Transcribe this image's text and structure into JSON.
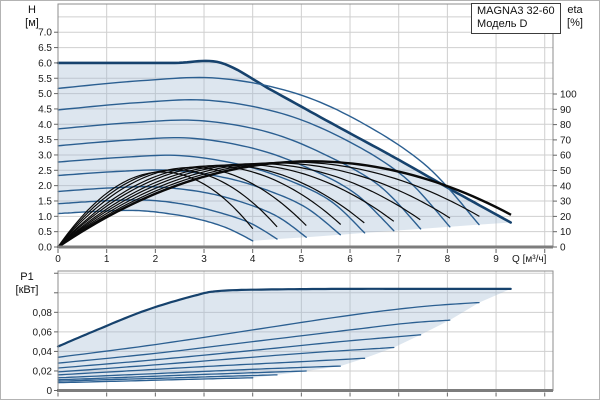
{
  "title_box": {
    "line1": "MAGNA3 32-60",
    "line2": "Модель D"
  },
  "top_chart": {
    "y_axis": {
      "name": "H",
      "unit": "[м]",
      "tick_labels": [
        "7.0",
        "6.5",
        "6.0",
        "5.5",
        "5.0",
        "4.5",
        "4.0",
        "3.5",
        "3.0",
        "2.5",
        "2.0",
        "1.5",
        "1.0",
        "0.5",
        "0.0"
      ]
    },
    "x_axis": {
      "unit_label": "Q [м³/ч]",
      "tick_labels": [
        "0",
        "1",
        "2",
        "3",
        "4",
        "5",
        "6",
        "7",
        "8",
        "9"
      ]
    },
    "eta_axis": {
      "name": "eta",
      "unit": "[%]",
      "tick_labels": [
        "100",
        "90",
        "80",
        "70",
        "60",
        "50",
        "40",
        "30",
        "20",
        "10",
        "0"
      ]
    }
  },
  "bottom_chart": {
    "y_axis": {
      "name": "P1",
      "unit": "[кВт]",
      "tick_labels": [
        "0,08",
        "0,06",
        "0,04",
        "0,02",
        "0"
      ]
    }
  },
  "colors": {
    "curve_blue": "#2b5f91",
    "curve_blue_bold": "#16426d",
    "efficiency_black": "#0a0a0a",
    "fill_blue": "#9db8d2",
    "fill_opacity": 0.35,
    "grid": "#cfcfcf",
    "frame": "#8c8c8c",
    "axis": "#7d7d7d",
    "text": "#1a1a1a",
    "box_border": "#3c3c3c",
    "page_border": "#b3b3b3"
  },
  "chart_data": [
    {
      "type": "line",
      "title": "MAGNA3 32-60 Модель D — Q/H speed curves with efficiency curves",
      "xlabel": "Q [м³/ч]",
      "ylabel": "H [м]",
      "y2label": "eta [%]",
      "xlim": [
        0,
        10.17
      ],
      "ylim": [
        0,
        7.92
      ],
      "y2lim": [
        0,
        100
      ],
      "grid": true,
      "legend_position": "none",
      "speed_curves": [
        [
          [
            0,
            6.0
          ],
          [
            1.2,
            6.0
          ],
          [
            2.4,
            6.0
          ],
          [
            3.35,
            6.0
          ],
          [
            4.4,
            5.1
          ],
          [
            5.6,
            4.05
          ],
          [
            6.9,
            2.93
          ],
          [
            8.1,
            1.85
          ],
          [
            9.3,
            0.8
          ]
        ],
        [
          [
            0,
            5.17
          ],
          [
            1.7,
            5.42
          ],
          [
            3.3,
            5.5
          ],
          [
            4.9,
            5.0
          ],
          [
            6.3,
            4.0
          ],
          [
            7.6,
            2.6
          ],
          [
            8.65,
            0.73
          ]
        ],
        [
          [
            0,
            4.47
          ],
          [
            1.6,
            4.7
          ],
          [
            3.1,
            4.78
          ],
          [
            4.6,
            4.35
          ],
          [
            5.9,
            3.5
          ],
          [
            7.1,
            2.3
          ],
          [
            8.05,
            0.66
          ]
        ],
        [
          [
            0,
            3.85
          ],
          [
            1.5,
            4.05
          ],
          [
            2.9,
            4.12
          ],
          [
            4.3,
            3.75
          ],
          [
            5.5,
            3.0
          ],
          [
            6.6,
            2.0
          ],
          [
            7.45,
            0.59
          ]
        ],
        [
          [
            0,
            3.3
          ],
          [
            1.4,
            3.48
          ],
          [
            2.7,
            3.55
          ],
          [
            4.0,
            3.22
          ],
          [
            5.1,
            2.6
          ],
          [
            6.1,
            1.75
          ],
          [
            6.9,
            0.53
          ]
        ],
        [
          [
            0,
            2.77
          ],
          [
            1.3,
            2.92
          ],
          [
            2.5,
            2.98
          ],
          [
            3.7,
            2.7
          ],
          [
            4.7,
            2.2
          ],
          [
            5.6,
            1.5
          ],
          [
            6.3,
            0.46
          ]
        ],
        [
          [
            0,
            2.33
          ],
          [
            1.2,
            2.46
          ],
          [
            2.3,
            2.5
          ],
          [
            3.4,
            2.27
          ],
          [
            4.3,
            1.85
          ],
          [
            5.1,
            1.28
          ],
          [
            5.8,
            0.4
          ]
        ],
        [
          [
            0,
            1.81
          ],
          [
            1.0,
            1.92
          ],
          [
            2.0,
            1.96
          ],
          [
            3.0,
            1.78
          ],
          [
            3.8,
            1.45
          ],
          [
            4.5,
            1.0
          ],
          [
            5.1,
            0.32
          ]
        ],
        [
          [
            0,
            1.41
          ],
          [
            0.9,
            1.5
          ],
          [
            1.8,
            1.53
          ],
          [
            2.6,
            1.39
          ],
          [
            3.3,
            1.13
          ],
          [
            3.95,
            0.78
          ],
          [
            4.5,
            0.26
          ]
        ],
        [
          [
            0,
            1.09
          ],
          [
            0.8,
            1.16
          ],
          [
            1.6,
            1.19
          ],
          [
            2.3,
            1.08
          ],
          [
            2.95,
            0.88
          ],
          [
            3.5,
            0.6
          ],
          [
            4.0,
            0.2
          ]
        ]
      ],
      "envelope_endpoints": [
        [
          9.3,
          0.8
        ],
        [
          8.65,
          0.73
        ],
        [
          8.05,
          0.66
        ],
        [
          7.45,
          0.59
        ],
        [
          6.9,
          0.53
        ],
        [
          6.3,
          0.46
        ],
        [
          5.8,
          0.4
        ],
        [
          5.1,
          0.32
        ],
        [
          4.5,
          0.26
        ],
        [
          4.0,
          0.2
        ]
      ],
      "efficiency_curves": [
        {
          "q_bep": 5.2,
          "eta_peak": 56.0,
          "q_end": 1.79
        },
        {
          "q_bep": 4.81,
          "eta_peak": 55.5,
          "q_end": 1.8
        },
        {
          "q_bep": 4.45,
          "eta_peak": 55.0,
          "q_end": 1.81
        },
        {
          "q_bep": 4.09,
          "eta_peak": 54.5,
          "q_end": 1.82
        },
        {
          "q_bep": 3.77,
          "eta_peak": 54.0,
          "q_end": 1.83
        },
        {
          "q_bep": 3.42,
          "eta_peak": 53.5,
          "q_end": 1.84
        },
        {
          "q_bep": 3.14,
          "eta_peak": 53.0,
          "q_end": 1.85
        },
        {
          "q_bep": 2.75,
          "eta_peak": 52.0,
          "q_end": 1.855
        },
        {
          "q_bep": 2.42,
          "eta_peak": 50.5,
          "q_end": 1.86
        },
        {
          "q_bep": 2.14,
          "eta_peak": 49.0,
          "q_end": 1.87
        }
      ]
    },
    {
      "type": "line",
      "title": "P1 power curves",
      "xlabel": "",
      "ylabel": "P1 [кВт]",
      "xlim": [
        0,
        10.17
      ],
      "ylim": [
        0,
        0.1223
      ],
      "grid": true,
      "legend_position": "none",
      "power_curves": [
        [
          [
            0,
            0.045
          ],
          [
            0.8,
            0.062
          ],
          [
            1.8,
            0.082
          ],
          [
            2.8,
            0.097
          ],
          [
            3.35,
            0.102
          ],
          [
            4.5,
            0.1035
          ],
          [
            6,
            0.104
          ],
          [
            7.5,
            0.104
          ],
          [
            9.3,
            0.104
          ]
        ],
        [
          [
            0,
            0.034
          ],
          [
            2,
            0.047
          ],
          [
            4,
            0.062
          ],
          [
            6,
            0.077
          ],
          [
            7.5,
            0.086
          ],
          [
            8.65,
            0.09
          ]
        ],
        [
          [
            0,
            0.028
          ],
          [
            2,
            0.038
          ],
          [
            4,
            0.05
          ],
          [
            6,
            0.062
          ],
          [
            7.2,
            0.069
          ],
          [
            8.05,
            0.072
          ]
        ],
        [
          [
            0,
            0.023
          ],
          [
            2,
            0.0315
          ],
          [
            4,
            0.041
          ],
          [
            5.8,
            0.05
          ],
          [
            7.45,
            0.057
          ]
        ],
        [
          [
            0,
            0.019
          ],
          [
            1.8,
            0.0255
          ],
          [
            3.6,
            0.0325
          ],
          [
            5.3,
            0.039
          ],
          [
            6.9,
            0.044
          ]
        ],
        [
          [
            0,
            0.016
          ],
          [
            1.6,
            0.0205
          ],
          [
            3.2,
            0.025
          ],
          [
            4.8,
            0.029
          ],
          [
            6.3,
            0.033
          ]
        ],
        [
          [
            0,
            0.013
          ],
          [
            1.5,
            0.0162
          ],
          [
            3,
            0.0195
          ],
          [
            4.4,
            0.0225
          ],
          [
            5.8,
            0.025
          ]
        ],
        [
          [
            0,
            0.011
          ],
          [
            1.3,
            0.0133
          ],
          [
            2.6,
            0.0158
          ],
          [
            3.9,
            0.018
          ],
          [
            5.1,
            0.02
          ]
        ],
        [
          [
            0,
            0.0095
          ],
          [
            1.1,
            0.0112
          ],
          [
            2.3,
            0.0128
          ],
          [
            3.4,
            0.0145
          ],
          [
            4.5,
            0.016
          ]
        ],
        [
          [
            0,
            0.008
          ],
          [
            1,
            0.0092
          ],
          [
            2,
            0.0105
          ],
          [
            3,
            0.0118
          ],
          [
            4,
            0.013
          ]
        ]
      ],
      "envelope_endpoints": [
        [
          9.3,
          0.104
        ],
        [
          8.65,
          0.09
        ],
        [
          8.05,
          0.072
        ],
        [
          7.45,
          0.057
        ],
        [
          6.9,
          0.044
        ],
        [
          6.3,
          0.033
        ],
        [
          5.8,
          0.025
        ],
        [
          5.1,
          0.02
        ],
        [
          4.5,
          0.016
        ],
        [
          4.0,
          0.013
        ]
      ]
    }
  ]
}
